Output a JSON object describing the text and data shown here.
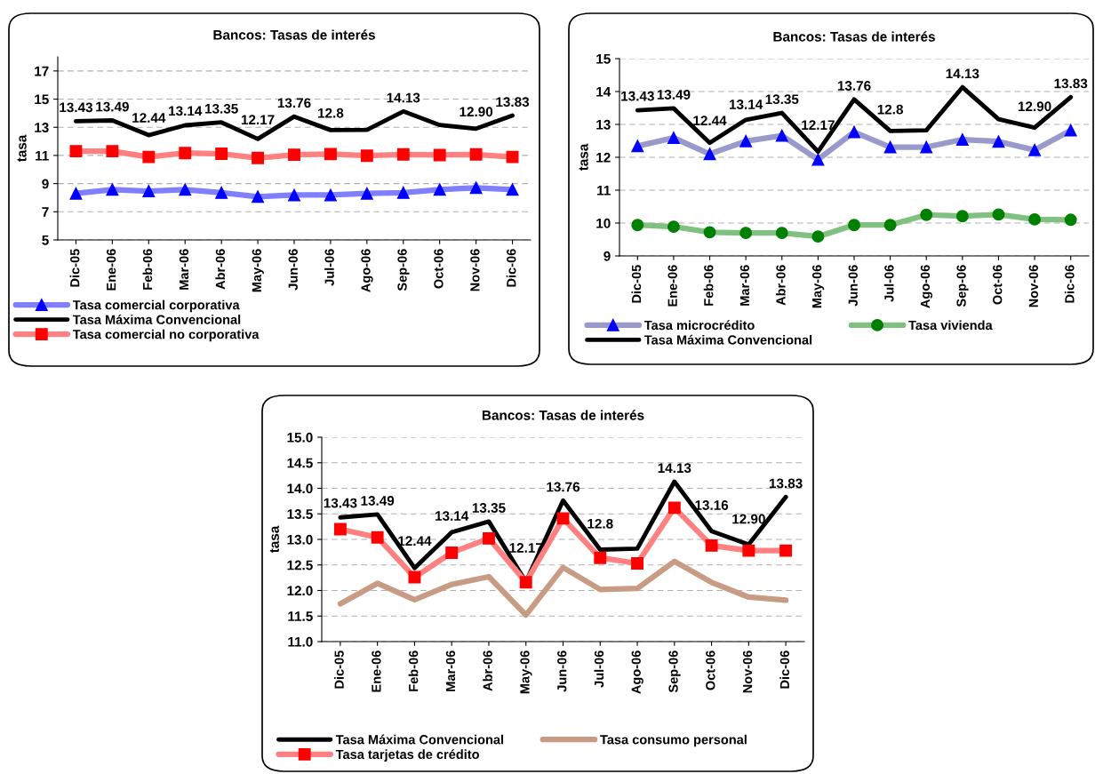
{
  "chart_data": [
    {
      "type": "line",
      "title": "Bancos: Tasas de interés",
      "ylabel": "tasa",
      "categories": [
        "Dic-05",
        "Ene-06",
        "Feb-06",
        "Mar-06",
        "Abr-06",
        "May-06",
        "Jun-06",
        "Jul-06",
        "Ago-06",
        "Sep-06",
        "Oct-06",
        "Nov-06",
        "Dic-06"
      ],
      "ylim": [
        5,
        18
      ],
      "yticks": [
        5,
        7,
        9,
        11,
        13,
        15,
        17
      ],
      "grid": "y",
      "legend": "bottom",
      "line_style": "solid",
      "series": [
        {
          "name": "Tasa comercial corporativa",
          "color": "#7f7fff",
          "marker": "triangle",
          "values": [
            8.3,
            8.58,
            8.46,
            8.58,
            8.35,
            8.07,
            8.19,
            8.19,
            8.3,
            8.35,
            8.58,
            8.7,
            8.58
          ]
        },
        {
          "name": "Tasa Máxima Convencional",
          "color": "#000000",
          "marker": "none",
          "values": [
            13.43,
            13.49,
            12.44,
            13.14,
            13.35,
            12.17,
            13.76,
            12.8,
            12.82,
            14.13,
            13.16,
            12.9,
            13.83
          ],
          "value_labels": [
            "13.43",
            "13.49",
            "12.44",
            "13.14",
            "13.35",
            "12.17",
            "13.76",
            "12.8",
            null,
            "14.13",
            null,
            "12.90",
            "13.83"
          ]
        },
        {
          "name": "Tasa comercial no corporativa",
          "color": "#ff8080",
          "marker": "square",
          "values": [
            11.3,
            11.3,
            10.89,
            11.17,
            11.12,
            10.82,
            11.05,
            11.1,
            10.98,
            11.07,
            11.03,
            11.07,
            10.89
          ]
        }
      ]
    },
    {
      "type": "line",
      "title": "Bancos: Tasas de interés",
      "ylabel": "tasa",
      "categories": [
        "Dic-05",
        "Ene-06",
        "Feb-06",
        "Mar-06",
        "Abr-06",
        "May-06",
        "Jun-06",
        "Jul-06",
        "Ago-06",
        "Sep-06",
        "Oct-06",
        "Nov-06",
        "Dic-06"
      ],
      "ylim": [
        9,
        15
      ],
      "yticks": [
        9,
        10,
        11,
        12,
        13,
        14,
        15
      ],
      "grid": "y",
      "legend": "bottom",
      "line_style": "solid",
      "series": [
        {
          "name": "Tasa microcrédito",
          "color": "#9999cc",
          "marker": "triangle",
          "values": [
            12.34,
            12.59,
            12.1,
            12.49,
            12.66,
            11.93,
            12.77,
            12.31,
            12.31,
            12.54,
            12.48,
            12.22,
            12.82
          ]
        },
        {
          "name": "Tasa Máxima Convencional",
          "color": "#000000",
          "marker": "none",
          "values": [
            13.43,
            13.49,
            12.44,
            13.14,
            13.35,
            12.17,
            13.76,
            12.8,
            12.82,
            14.13,
            13.16,
            12.9,
            13.83
          ],
          "value_labels": [
            "13.43",
            "13.49",
            "12.44",
            "13.14",
            "13.35",
            "12.17",
            "13.76",
            "12.8",
            null,
            "14.13",
            null,
            "12.90",
            "13.83"
          ]
        },
        {
          "name": "Tasa vivienda",
          "color": "#80c080",
          "marker": "circle",
          "values": [
            9.94,
            9.89,
            9.72,
            9.7,
            9.7,
            9.59,
            9.94,
            9.94,
            10.25,
            10.21,
            10.26,
            10.11,
            10.1
          ]
        }
      ]
    },
    {
      "type": "line",
      "title": "Bancos: Tasas de interés",
      "ylabel": "tasa",
      "categories": [
        "Dic-05",
        "Ene-06",
        "Feb-06",
        "Mar-06",
        "Abr-06",
        "May-06",
        "Jun-06",
        "Jul-06",
        "Ago-06",
        "Sep-06",
        "Oct-06",
        "Nov-06",
        "Dic-06"
      ],
      "ylim": [
        11,
        15
      ],
      "yticks": [
        {
          "value": 11,
          "label": "11.0"
        },
        {
          "value": 11.5,
          "label": "11.5"
        },
        {
          "value": 12,
          "label": "12.0"
        },
        {
          "value": 12.5,
          "label": "12.5"
        },
        {
          "value": 13,
          "label": "13.0"
        },
        {
          "value": 13.5,
          "label": "13.5"
        },
        {
          "value": 14,
          "label": "14.0"
        },
        {
          "value": 14.5,
          "label": "14.5"
        },
        {
          "value": 15,
          "label": "15.0"
        }
      ],
      "grid": "y",
      "legend": "bottom",
      "line_style": "solid",
      "series": [
        {
          "name": "Tasa Máxima Convencional",
          "color": "#000000",
          "marker": "none",
          "values": [
            13.43,
            13.49,
            12.44,
            13.14,
            13.35,
            12.17,
            13.76,
            12.8,
            12.82,
            14.13,
            13.16,
            12.9,
            13.83
          ],
          "value_labels": [
            "13.43",
            "13.49",
            "12.44",
            "13.14",
            "13.35",
            "12.17",
            "13.76",
            "12.8",
            null,
            "14.13",
            "13.16",
            "12.90",
            "13.83"
          ]
        },
        {
          "name": "Tasa tarjetas de crédito",
          "color": "#ff8080",
          "marker": "square",
          "values": [
            13.2,
            13.04,
            12.26,
            12.74,
            13.02,
            12.16,
            13.41,
            12.64,
            12.53,
            13.62,
            12.88,
            12.78,
            12.78
          ]
        },
        {
          "name": "Tasa consumo personal",
          "color": "#c89c84",
          "marker": "none",
          "values": [
            11.74,
            12.14,
            11.82,
            12.12,
            12.27,
            11.52,
            12.45,
            12.02,
            12.04,
            12.57,
            12.16,
            11.87,
            11.81
          ]
        }
      ]
    }
  ]
}
